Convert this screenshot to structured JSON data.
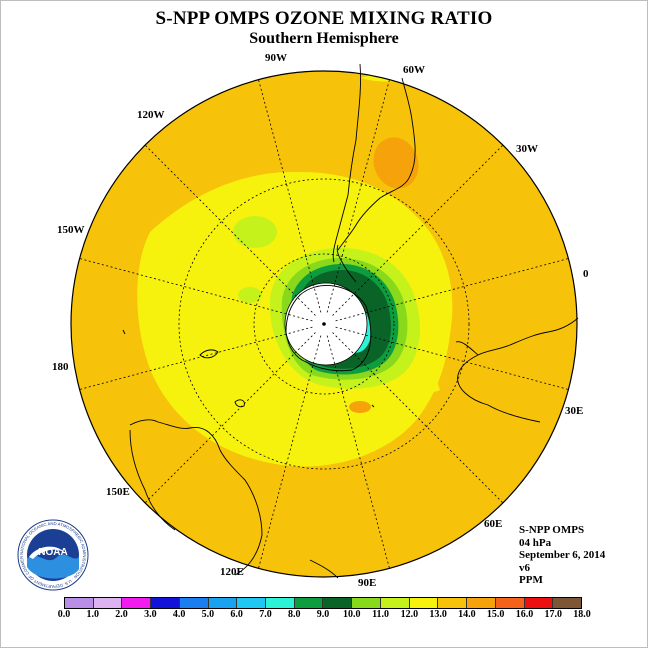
{
  "title": "S-NPP OMPS OZONE MIXING RATIO",
  "subtitle": "Southern Hemisphere",
  "longitude_labels": [
    "90W",
    "60W",
    "30W",
    "0",
    "30E",
    "60E",
    "90E",
    "120E",
    "150E",
    "180",
    "150W",
    "120W"
  ],
  "info": {
    "instrument": "S-NPP OMPS",
    "level": "04 hPa",
    "date": "September 6, 2014",
    "version": "v6",
    "units": "PPM"
  },
  "logo": {
    "text": "NOAA",
    "ring_text": "NATIONAL OCEANIC AND ATMOSPHERIC ADMINISTRATION · U.S. DEPARTMENT OF COMMERCE"
  },
  "colorbar": {
    "ticks": [
      "0.0",
      "1.0",
      "2.0",
      "3.0",
      "4.0",
      "5.0",
      "6.0",
      "7.0",
      "8.0",
      "9.0",
      "10.0",
      "11.0",
      "12.0",
      "13.0",
      "14.0",
      "15.0",
      "16.0",
      "17.0",
      "18.0"
    ],
    "colors": [
      "#b98ee6",
      "#dcb2f0",
      "#f21cf0",
      "#1212d8",
      "#1a7ef0",
      "#19a2f0",
      "#1fc8f2",
      "#2cf2d6",
      "#0e9d3e",
      "#0a6428",
      "#88d81c",
      "#c6f21c",
      "#f6f20e",
      "#f6c20a",
      "#f6a20a",
      "#f5621a",
      "#ec1010",
      "#7d5636"
    ]
  },
  "map": {
    "projection": "south polar stereographic",
    "dominant_value_range_ppm": "13.0-14.0",
    "minimum_value_range_ppm": "9.0-10.0",
    "minimum_region": "ring around South Pole, Antarctic sector"
  }
}
